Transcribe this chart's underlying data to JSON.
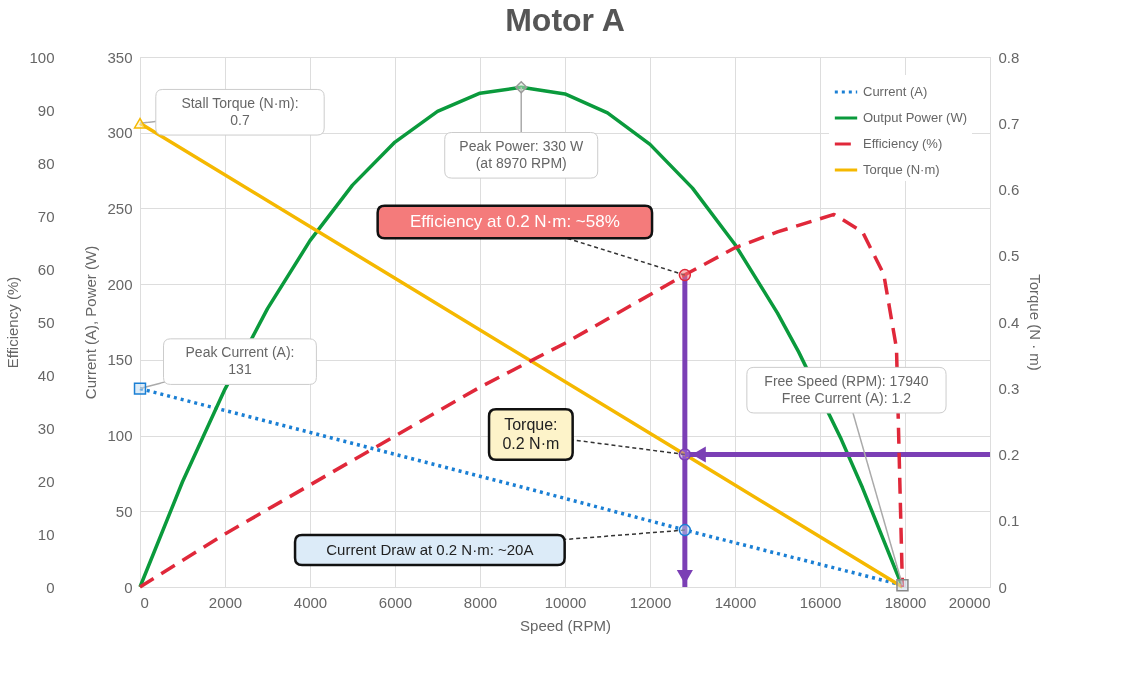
{
  "chart_data": {
    "type": "line",
    "title": "Motor A",
    "xlabel": "Speed (RPM)",
    "ylabel": "Current (A), Power (W)",
    "y2label": "Torque (N · m)",
    "y3label": "Efficiency (%)",
    "xlim": [
      0,
      20000
    ],
    "xticks": [
      0,
      2000,
      4000,
      6000,
      8000,
      10000,
      12000,
      14000,
      16000,
      18000,
      20000
    ],
    "ylim": [
      0,
      350
    ],
    "yticks": [
      0,
      50,
      100,
      150,
      200,
      250,
      300,
      350
    ],
    "y2lim": [
      0,
      0.8
    ],
    "y2ticks": [
      0,
      0.1,
      0.2,
      0.3,
      0.4,
      0.5,
      0.6,
      0.7,
      0.8
    ],
    "y3lim": [
      0,
      100
    ],
    "y3ticks": [
      0,
      10,
      20,
      30,
      40,
      50,
      60,
      70,
      80,
      90,
      100
    ],
    "grid": true,
    "legend": "top right",
    "series": [
      {
        "name": "Current (A)",
        "color": "#1a7fd4",
        "line_style": "dotted",
        "x": [
          0,
          4000,
          9000,
          12820,
          17940
        ],
        "values": [
          131,
          102.1,
          65.9,
          37.6,
          1.2
        ]
      },
      {
        "name": "Output Power (W)",
        "color": "#0a9a3c",
        "line_style": "solid",
        "x": [
          0,
          1000,
          2000,
          3000,
          4000,
          5000,
          6000,
          7000,
          8000,
          8970,
          10000,
          11000,
          12000,
          13000,
          14000,
          15000,
          15500,
          16500,
          17000,
          17940
        ],
        "values": [
          0,
          69.5,
          130.7,
          183.8,
          228.7,
          265.4,
          293.8,
          314.1,
          326.1,
          330,
          325.6,
          313.1,
          292.3,
          263.4,
          226.2,
          180.9,
          155.1,
          97.5,
          65.5,
          0
        ]
      },
      {
        "name": "Efficiency (%)",
        "color": "#e0283a",
        "line_style": "dashed",
        "axis": "y3",
        "x": [
          0,
          2000,
          6000,
          8000,
          10000,
          12820,
          14000,
          15000,
          16330,
          17000,
          17500,
          17800,
          17940
        ],
        "values": [
          0,
          10,
          28.5,
          37.7,
          46,
          58.9,
          64,
          67,
          70.3,
          67,
          59,
          45,
          0
        ]
      },
      {
        "name": "Torque (N·m)",
        "color": "#f5b800",
        "line_style": "solid",
        "axis": "y2",
        "x": [
          0,
          6000,
          12820,
          17940
        ],
        "values": [
          0.7,
          0.466,
          0.2,
          0
        ]
      }
    ],
    "ref_lines": [
      {
        "axis": "x",
        "value": 12820,
        "color": "#7b3fb5"
      },
      {
        "axis": "y2",
        "value": 0.2,
        "color": "#7b3fb5"
      }
    ],
    "annotations": [
      {
        "text": "Stall Torque (N·m):\n0.7",
        "x": 0,
        "y": 306.25
      },
      {
        "text": "Peak Power: 330 W\n(at 8970 RPM)",
        "x": 8970,
        "y": 330
      },
      {
        "text": "Efficiency at 0.2 N·m: ~58%",
        "x": 12820,
        "y": 206
      },
      {
        "text": "Peak Current (A):\n131",
        "x": 0,
        "y": 131
      },
      {
        "text": "Torque:\n0.2 N·m",
        "x": 12820,
        "y": 87.5
      },
      {
        "text": "Free Speed (RPM): 17940\nFree Current (A): 1.2",
        "x": 17940,
        "y": 1.2
      },
      {
        "text": "Current Draw at 0.2 N·m:  ~20A",
        "x": 12820,
        "y": 37.6
      }
    ]
  }
}
